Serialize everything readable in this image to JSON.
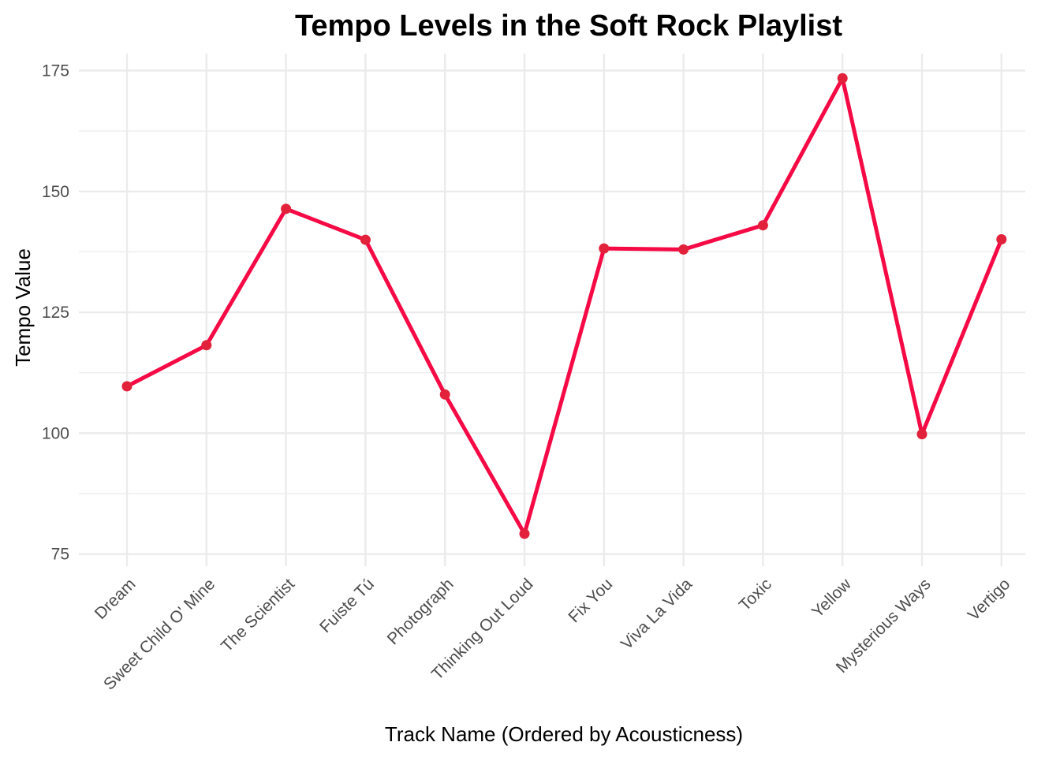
{
  "chart_data": {
    "type": "line",
    "title": "Tempo Levels in the Soft Rock Playlist",
    "xlabel": "Track Name (Ordered by Acousticness)",
    "ylabel": "Tempo Value",
    "categories": [
      "Dream",
      "Sweet Child O' Mine",
      "The Scientist",
      "Fuiste Tú",
      "Photograph",
      "Thinking Out Loud",
      "Fix You",
      "Viva La Vida",
      "Toxic",
      "Yellow",
      "Mysterious Ways",
      "Vertigo"
    ],
    "series": [
      {
        "values": [
          109.7,
          118.2,
          146.4,
          140.0,
          108.0,
          79.2,
          138.2,
          138.0,
          143.0,
          173.4,
          99.8,
          140.1
        ]
      }
    ],
    "yticks": [
      75,
      100,
      125,
      150,
      175
    ],
    "ylim": [
      72.5,
      178.5
    ],
    "grid": true,
    "line_color": "#f50a45",
    "point_color": "#e2213a"
  }
}
